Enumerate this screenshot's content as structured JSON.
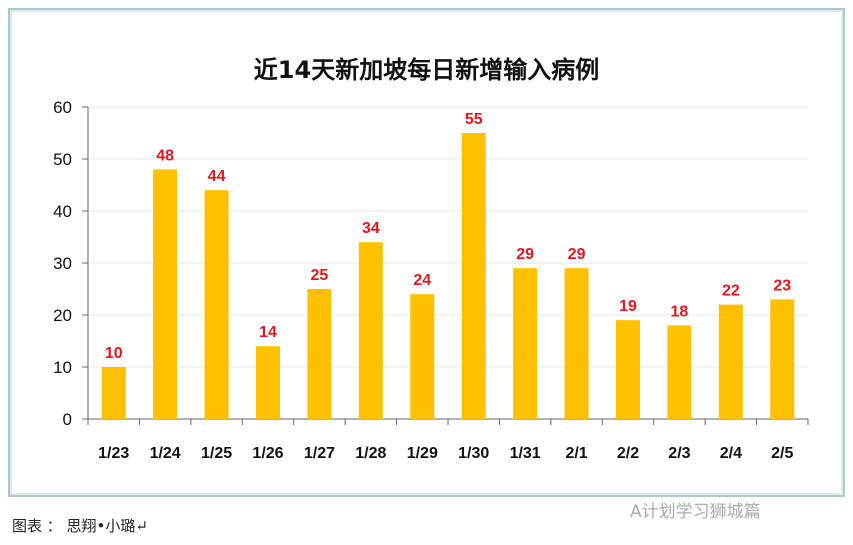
{
  "chart_data": {
    "type": "bar",
    "title": "近14天新加坡每日新增输入病例",
    "categories": [
      "1/23",
      "1/24",
      "1/25",
      "1/26",
      "1/27",
      "1/28",
      "1/29",
      "1/30",
      "1/31",
      "2/1",
      "2/2",
      "2/3",
      "2/4",
      "2/5"
    ],
    "values": [
      10,
      48,
      44,
      14,
      25,
      34,
      24,
      55,
      29,
      29,
      19,
      18,
      22,
      23
    ],
    "ylim": [
      0,
      60
    ],
    "yticks": [
      0,
      10,
      20,
      30,
      40,
      50,
      60
    ],
    "grid": true,
    "bar_color": "#ffc000",
    "label_color": "#e8141c"
  },
  "caption": "图表 ： 思翔•小璐↵",
  "watermark": "A计划学习狮城篇"
}
